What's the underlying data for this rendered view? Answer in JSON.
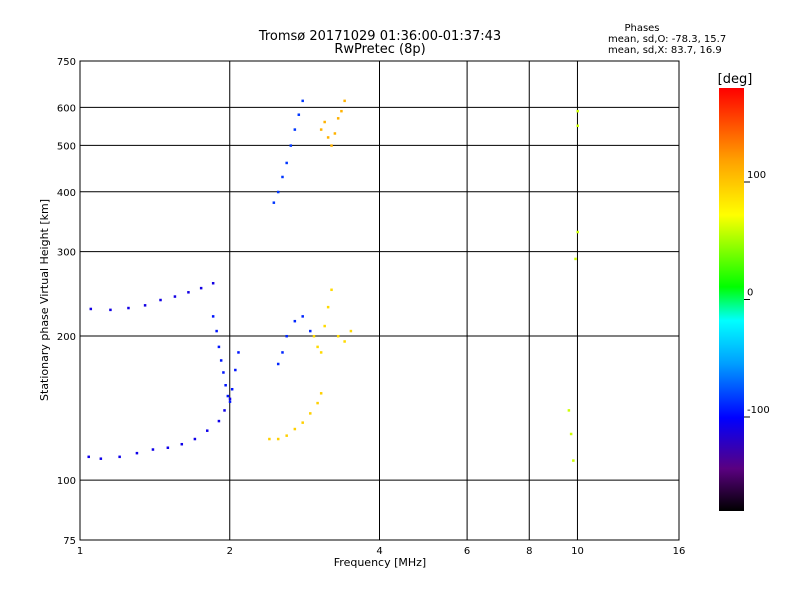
{
  "chart_data": {
    "type": "scatter",
    "title": "Tromsø 20171029 01:36:00-01:37:43",
    "subtitle": "RwPretec (8p)",
    "xlabel": "Frequency [MHz]",
    "ylabel": "Stationary phase Virtual Height [km]",
    "xscale": "log",
    "yscale": "log",
    "xlim": [
      1,
      16
    ],
    "ylim": [
      75,
      750
    ],
    "xticks": [
      1,
      2,
      4,
      6,
      8,
      10,
      16
    ],
    "xtick_labels": [
      "1",
      "2",
      "4",
      "6",
      "8",
      "10",
      "16"
    ],
    "yticks": [
      75,
      100,
      200,
      300,
      400,
      500,
      600,
      750
    ],
    "ytick_labels": [
      "75",
      "100",
      "200",
      "300",
      "400",
      "500",
      "600",
      "750"
    ],
    "grid": true,
    "stats": {
      "header": "Phases",
      "line_o": "mean, sd,O: -78.3, 15.7",
      "line_x": "mean, sd,X:  83.7, 16.9"
    },
    "colorbar": {
      "unit": "[deg]",
      "range": [
        -180,
        180
      ],
      "ticks": [
        100,
        0,
        -100
      ],
      "tick_labels": [
        "100",
        "0",
        "-100"
      ]
    },
    "segments": [
      {
        "name": "low-trace",
        "x": [
          1.04,
          1.1,
          1.2,
          1.3,
          1.4,
          1.5,
          1.6,
          1.7,
          1.8,
          1.9,
          1.95,
          2.0
        ],
        "y": [
          112,
          111,
          112,
          114,
          116,
          117,
          119,
          122,
          127,
          133,
          140,
          148
        ],
        "phase": -108
      },
      {
        "name": "f1-trace",
        "x": [
          1.05,
          1.15,
          1.25,
          1.35,
          1.45,
          1.55,
          1.65,
          1.75,
          1.85
        ],
        "y": [
          228,
          227,
          229,
          232,
          238,
          242,
          247,
          252,
          258
        ],
        "phase": -110
      },
      {
        "name": "f1-cusp",
        "x": [
          1.85,
          1.88,
          1.9,
          1.92,
          1.94,
          1.96,
          1.98,
          2.0,
          2.02,
          2.05,
          2.08
        ],
        "y": [
          220,
          205,
          190,
          178,
          168,
          158,
          150,
          146,
          155,
          170,
          185
        ],
        "phase": -95
      },
      {
        "name": "e-cluster",
        "x": [
          2.4,
          2.5,
          2.6,
          2.7,
          2.8,
          2.9,
          3.0,
          3.05
        ],
        "y": [
          122,
          122,
          124,
          128,
          132,
          138,
          145,
          152
        ],
        "phase": 95
      },
      {
        "name": "f2o-trace",
        "x": [
          2.45,
          2.5,
          2.55,
          2.6,
          2.65,
          2.7,
          2.75,
          2.8
        ],
        "y": [
          380,
          400,
          430,
          460,
          500,
          540,
          580,
          620
        ],
        "phase": -85
      },
      {
        "name": "f2x-trace",
        "x": [
          3.05,
          3.1,
          3.15,
          3.2,
          3.25,
          3.3,
          3.35,
          3.4
        ],
        "y": [
          540,
          560,
          520,
          500,
          530,
          570,
          590,
          620
        ],
        "phase": 110
      },
      {
        "name": "fx-lower",
        "x": [
          2.95,
          3.0,
          3.05,
          3.1,
          3.15,
          3.2,
          3.3,
          3.4,
          3.5
        ],
        "y": [
          200,
          190,
          185,
          210,
          230,
          250,
          200,
          195,
          205
        ],
        "phase": 90
      },
      {
        "name": "fo-mid",
        "x": [
          2.5,
          2.55,
          2.6,
          2.7,
          2.8,
          2.9
        ],
        "y": [
          175,
          185,
          200,
          215,
          220,
          205
        ],
        "phase": -90
      },
      {
        "name": "high-freq",
        "x": [
          9.6,
          9.7,
          9.8,
          9.9,
          10.0,
          10.0,
          10.0
        ],
        "y": [
          140,
          125,
          110,
          290,
          330,
          550,
          590
        ],
        "phase": 60
      }
    ]
  }
}
